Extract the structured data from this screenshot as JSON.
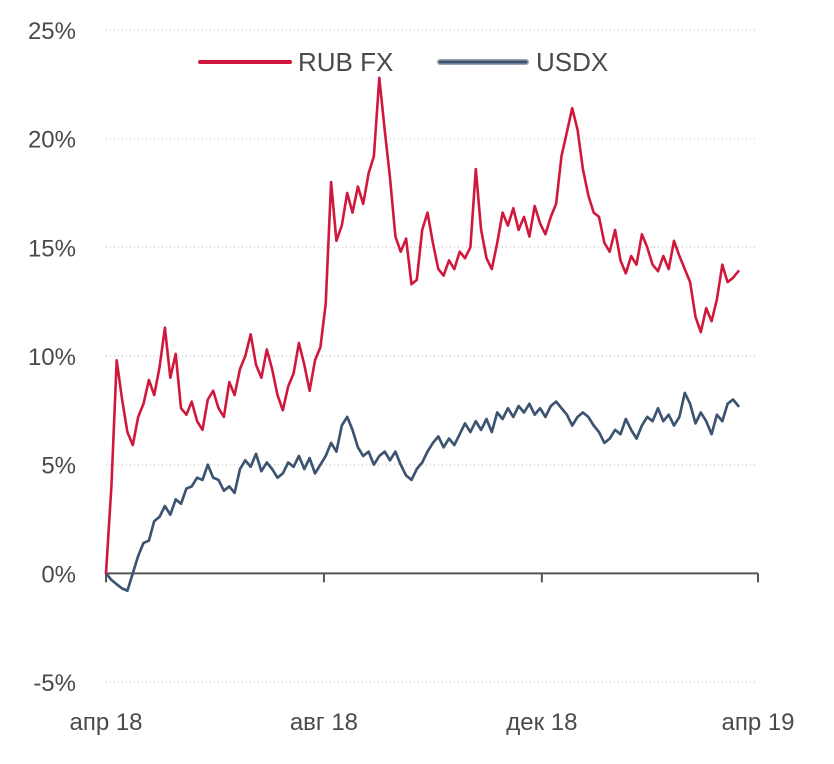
{
  "chart_data": {
    "type": "line",
    "y_ticks": [
      {
        "value": 25,
        "label": "25%"
      },
      {
        "value": 20,
        "label": "20%"
      },
      {
        "value": 15,
        "label": "15%"
      },
      {
        "value": 10,
        "label": "10%"
      },
      {
        "value": 5,
        "label": "5%"
      },
      {
        "value": 0,
        "label": "0%"
      },
      {
        "value": -5,
        "label": "-5%"
      }
    ],
    "x_ticks": [
      {
        "value": "2018-04-01",
        "label": "апр 18"
      },
      {
        "value": "2018-08-01",
        "label": "авг 18"
      },
      {
        "value": "2018-12-01",
        "label": "дек 18"
      },
      {
        "value": "2019-04-01",
        "label": "апр 19"
      }
    ],
    "xlim": [
      "2018-04-01",
      "2019-04-01"
    ],
    "ylim": [
      -5,
      25
    ],
    "grid": true,
    "legend": {
      "position": "top-center"
    },
    "colors": {
      "rub_fx": "#d0183c",
      "usdx": "#3d5470",
      "usdx_outline": "#9aa6b4"
    },
    "series": [
      {
        "name": "RUB FX",
        "key": "rub_fx",
        "points": [
          [
            "2018-04-01",
            0.0
          ],
          [
            "2018-04-04",
            4.0
          ],
          [
            "2018-04-07",
            9.8
          ],
          [
            "2018-04-10",
            8.0
          ],
          [
            "2018-04-13",
            6.5
          ],
          [
            "2018-04-16",
            5.9
          ],
          [
            "2018-04-19",
            7.2
          ],
          [
            "2018-04-22",
            7.8
          ],
          [
            "2018-04-25",
            8.9
          ],
          [
            "2018-04-28",
            8.2
          ],
          [
            "2018-05-01",
            9.5
          ],
          [
            "2018-05-04",
            11.3
          ],
          [
            "2018-05-07",
            9.0
          ],
          [
            "2018-05-10",
            10.1
          ],
          [
            "2018-05-13",
            7.6
          ],
          [
            "2018-05-16",
            7.3
          ],
          [
            "2018-05-19",
            7.9
          ],
          [
            "2018-05-22",
            7.0
          ],
          [
            "2018-05-25",
            6.6
          ],
          [
            "2018-05-28",
            8.0
          ],
          [
            "2018-05-31",
            8.4
          ],
          [
            "2018-06-03",
            7.6
          ],
          [
            "2018-06-06",
            7.2
          ],
          [
            "2018-06-09",
            8.8
          ],
          [
            "2018-06-12",
            8.2
          ],
          [
            "2018-06-15",
            9.4
          ],
          [
            "2018-06-18",
            10.0
          ],
          [
            "2018-06-21",
            11.0
          ],
          [
            "2018-06-24",
            9.6
          ],
          [
            "2018-06-27",
            9.0
          ],
          [
            "2018-06-30",
            10.3
          ],
          [
            "2018-07-03",
            9.4
          ],
          [
            "2018-07-06",
            8.2
          ],
          [
            "2018-07-09",
            7.5
          ],
          [
            "2018-07-12",
            8.6
          ],
          [
            "2018-07-15",
            9.2
          ],
          [
            "2018-07-18",
            10.6
          ],
          [
            "2018-07-21",
            9.6
          ],
          [
            "2018-07-24",
            8.4
          ],
          [
            "2018-07-27",
            9.8
          ],
          [
            "2018-07-30",
            10.4
          ],
          [
            "2018-08-02",
            12.4
          ],
          [
            "2018-08-05",
            18.0
          ],
          [
            "2018-08-08",
            15.3
          ],
          [
            "2018-08-11",
            16.0
          ],
          [
            "2018-08-14",
            17.5
          ],
          [
            "2018-08-17",
            16.6
          ],
          [
            "2018-08-20",
            17.8
          ],
          [
            "2018-08-23",
            17.0
          ],
          [
            "2018-08-26",
            18.4
          ],
          [
            "2018-08-29",
            19.2
          ],
          [
            "2018-09-01",
            22.8
          ],
          [
            "2018-09-04",
            20.4
          ],
          [
            "2018-09-07",
            18.2
          ],
          [
            "2018-09-10",
            15.5
          ],
          [
            "2018-09-13",
            14.8
          ],
          [
            "2018-09-16",
            15.4
          ],
          [
            "2018-09-19",
            13.3
          ],
          [
            "2018-09-22",
            13.5
          ],
          [
            "2018-09-25",
            15.8
          ],
          [
            "2018-09-28",
            16.6
          ],
          [
            "2018-10-01",
            15.2
          ],
          [
            "2018-10-04",
            14.0
          ],
          [
            "2018-10-07",
            13.7
          ],
          [
            "2018-10-10",
            14.4
          ],
          [
            "2018-10-13",
            14.0
          ],
          [
            "2018-10-16",
            14.8
          ],
          [
            "2018-10-19",
            14.5
          ],
          [
            "2018-10-22",
            15.0
          ],
          [
            "2018-10-25",
            18.6
          ],
          [
            "2018-10-28",
            15.8
          ],
          [
            "2018-10-31",
            14.5
          ],
          [
            "2018-11-03",
            14.0
          ],
          [
            "2018-11-06",
            15.2
          ],
          [
            "2018-11-09",
            16.6
          ],
          [
            "2018-11-12",
            16.0
          ],
          [
            "2018-11-15",
            16.8
          ],
          [
            "2018-11-18",
            15.8
          ],
          [
            "2018-11-21",
            16.4
          ],
          [
            "2018-11-24",
            15.5
          ],
          [
            "2018-11-27",
            16.9
          ],
          [
            "2018-11-30",
            16.1
          ],
          [
            "2018-12-03",
            15.6
          ],
          [
            "2018-12-06",
            16.4
          ],
          [
            "2018-12-09",
            17.0
          ],
          [
            "2018-12-12",
            19.2
          ],
          [
            "2018-12-15",
            20.3
          ],
          [
            "2018-12-18",
            21.4
          ],
          [
            "2018-12-21",
            20.4
          ],
          [
            "2018-12-24",
            18.6
          ],
          [
            "2018-12-27",
            17.4
          ],
          [
            "2018-12-30",
            16.6
          ],
          [
            "2019-01-02",
            16.4
          ],
          [
            "2019-01-05",
            15.2
          ],
          [
            "2019-01-08",
            14.8
          ],
          [
            "2019-01-11",
            15.8
          ],
          [
            "2019-01-14",
            14.4
          ],
          [
            "2019-01-17",
            13.8
          ],
          [
            "2019-01-20",
            14.6
          ],
          [
            "2019-01-23",
            14.2
          ],
          [
            "2019-01-26",
            15.6
          ],
          [
            "2019-01-29",
            15.0
          ],
          [
            "2019-02-01",
            14.2
          ],
          [
            "2019-02-04",
            13.9
          ],
          [
            "2019-02-07",
            14.6
          ],
          [
            "2019-02-10",
            14.0
          ],
          [
            "2019-02-13",
            15.3
          ],
          [
            "2019-02-16",
            14.6
          ],
          [
            "2019-02-19",
            14.0
          ],
          [
            "2019-02-22",
            13.4
          ],
          [
            "2019-02-25",
            11.8
          ],
          [
            "2019-02-28",
            11.1
          ],
          [
            "2019-03-03",
            12.2
          ],
          [
            "2019-03-06",
            11.6
          ],
          [
            "2019-03-09",
            12.6
          ],
          [
            "2019-03-12",
            14.2
          ],
          [
            "2019-03-15",
            13.4
          ],
          [
            "2019-03-18",
            13.6
          ],
          [
            "2019-03-21",
            13.9
          ]
        ]
      },
      {
        "name": "USDX",
        "key": "usdx",
        "points": [
          [
            "2018-04-01",
            0.0
          ],
          [
            "2018-04-04",
            -0.3
          ],
          [
            "2018-04-07",
            -0.5
          ],
          [
            "2018-04-10",
            -0.7
          ],
          [
            "2018-04-13",
            -0.8
          ],
          [
            "2018-04-16",
            0.0
          ],
          [
            "2018-04-19",
            0.8
          ],
          [
            "2018-04-22",
            1.4
          ],
          [
            "2018-04-25",
            1.5
          ],
          [
            "2018-04-28",
            2.4
          ],
          [
            "2018-05-01",
            2.6
          ],
          [
            "2018-05-04",
            3.1
          ],
          [
            "2018-05-07",
            2.7
          ],
          [
            "2018-05-10",
            3.4
          ],
          [
            "2018-05-13",
            3.2
          ],
          [
            "2018-05-16",
            3.9
          ],
          [
            "2018-05-19",
            4.0
          ],
          [
            "2018-05-22",
            4.4
          ],
          [
            "2018-05-25",
            4.3
          ],
          [
            "2018-05-28",
            5.0
          ],
          [
            "2018-05-31",
            4.4
          ],
          [
            "2018-06-03",
            4.3
          ],
          [
            "2018-06-06",
            3.8
          ],
          [
            "2018-06-09",
            4.0
          ],
          [
            "2018-06-12",
            3.7
          ],
          [
            "2018-06-15",
            4.8
          ],
          [
            "2018-06-18",
            5.2
          ],
          [
            "2018-06-21",
            4.9
          ],
          [
            "2018-06-24",
            5.5
          ],
          [
            "2018-06-27",
            4.7
          ],
          [
            "2018-06-30",
            5.1
          ],
          [
            "2018-07-03",
            4.8
          ],
          [
            "2018-07-06",
            4.4
          ],
          [
            "2018-07-09",
            4.6
          ],
          [
            "2018-07-12",
            5.1
          ],
          [
            "2018-07-15",
            4.9
          ],
          [
            "2018-07-18",
            5.4
          ],
          [
            "2018-07-21",
            4.8
          ],
          [
            "2018-07-24",
            5.3
          ],
          [
            "2018-07-27",
            4.6
          ],
          [
            "2018-07-30",
            5.0
          ],
          [
            "2018-08-02",
            5.4
          ],
          [
            "2018-08-05",
            6.0
          ],
          [
            "2018-08-08",
            5.6
          ],
          [
            "2018-08-11",
            6.8
          ],
          [
            "2018-08-14",
            7.2
          ],
          [
            "2018-08-17",
            6.6
          ],
          [
            "2018-08-20",
            5.8
          ],
          [
            "2018-08-23",
            5.4
          ],
          [
            "2018-08-26",
            5.6
          ],
          [
            "2018-08-29",
            5.0
          ],
          [
            "2018-09-01",
            5.4
          ],
          [
            "2018-09-04",
            5.6
          ],
          [
            "2018-09-07",
            5.2
          ],
          [
            "2018-09-10",
            5.6
          ],
          [
            "2018-09-13",
            5.0
          ],
          [
            "2018-09-16",
            4.5
          ],
          [
            "2018-09-19",
            4.3
          ],
          [
            "2018-09-22",
            4.8
          ],
          [
            "2018-09-25",
            5.1
          ],
          [
            "2018-09-28",
            5.6
          ],
          [
            "2018-10-01",
            6.0
          ],
          [
            "2018-10-04",
            6.3
          ],
          [
            "2018-10-07",
            5.8
          ],
          [
            "2018-10-10",
            6.2
          ],
          [
            "2018-10-13",
            5.9
          ],
          [
            "2018-10-16",
            6.4
          ],
          [
            "2018-10-19",
            6.9
          ],
          [
            "2018-10-22",
            6.5
          ],
          [
            "2018-10-25",
            7.0
          ],
          [
            "2018-10-28",
            6.6
          ],
          [
            "2018-10-31",
            7.1
          ],
          [
            "2018-11-03",
            6.5
          ],
          [
            "2018-11-06",
            7.4
          ],
          [
            "2018-11-09",
            7.1
          ],
          [
            "2018-11-12",
            7.6
          ],
          [
            "2018-11-15",
            7.2
          ],
          [
            "2018-11-18",
            7.7
          ],
          [
            "2018-11-21",
            7.4
          ],
          [
            "2018-11-24",
            7.8
          ],
          [
            "2018-11-27",
            7.3
          ],
          [
            "2018-11-30",
            7.6
          ],
          [
            "2018-12-03",
            7.2
          ],
          [
            "2018-12-06",
            7.7
          ],
          [
            "2018-12-09",
            7.9
          ],
          [
            "2018-12-12",
            7.6
          ],
          [
            "2018-12-15",
            7.3
          ],
          [
            "2018-12-18",
            6.8
          ],
          [
            "2018-12-21",
            7.2
          ],
          [
            "2018-12-24",
            7.4
          ],
          [
            "2018-12-27",
            7.2
          ],
          [
            "2018-12-30",
            6.8
          ],
          [
            "2019-01-02",
            6.5
          ],
          [
            "2019-01-05",
            6.0
          ],
          [
            "2019-01-08",
            6.2
          ],
          [
            "2019-01-11",
            6.6
          ],
          [
            "2019-01-14",
            6.4
          ],
          [
            "2019-01-17",
            7.1
          ],
          [
            "2019-01-20",
            6.6
          ],
          [
            "2019-01-23",
            6.2
          ],
          [
            "2019-01-26",
            6.8
          ],
          [
            "2019-01-29",
            7.2
          ],
          [
            "2019-02-01",
            7.0
          ],
          [
            "2019-02-04",
            7.6
          ],
          [
            "2019-02-07",
            7.0
          ],
          [
            "2019-02-10",
            7.3
          ],
          [
            "2019-02-13",
            6.8
          ],
          [
            "2019-02-16",
            7.2
          ],
          [
            "2019-02-19",
            8.3
          ],
          [
            "2019-02-22",
            7.8
          ],
          [
            "2019-02-25",
            6.9
          ],
          [
            "2019-02-28",
            7.4
          ],
          [
            "2019-03-03",
            7.0
          ],
          [
            "2019-03-06",
            6.4
          ],
          [
            "2019-03-09",
            7.3
          ],
          [
            "2019-03-12",
            7.0
          ],
          [
            "2019-03-15",
            7.8
          ],
          [
            "2019-03-18",
            8.0
          ],
          [
            "2019-03-21",
            7.7
          ]
        ]
      }
    ]
  }
}
